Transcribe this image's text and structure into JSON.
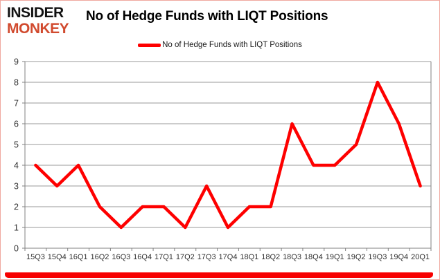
{
  "logo": {
    "line1": "INSIDER",
    "line2": "MONKEY",
    "line1_color": "#111111",
    "line2_color": "#d14a2e"
  },
  "header": {
    "title": "No of Hedge Funds with LIQT Positions"
  },
  "legend": {
    "label": "No of Hedge Funds with LIQT Positions",
    "swatch_color": "#fe0000",
    "position": "top-center"
  },
  "chart_data": {
    "type": "line",
    "title": "No of Hedge Funds with LIQT Positions",
    "categories": [
      "15Q3",
      "15Q4",
      "16Q1",
      "16Q2",
      "16Q3",
      "16Q4",
      "17Q1",
      "17Q2",
      "17Q3",
      "17Q4",
      "18Q1",
      "18Q2",
      "18Q3",
      "18Q4",
      "19Q1",
      "19Q2",
      "19Q3",
      "19Q4",
      "20Q1"
    ],
    "series": [
      {
        "name": "No of Hedge Funds with LIQT Positions",
        "color": "#fe0000",
        "stroke_width": 4.5,
        "values": [
          4,
          3,
          4,
          2,
          1,
          2,
          2,
          1,
          3,
          1,
          2,
          2,
          6,
          4,
          4,
          5,
          8,
          6,
          3
        ]
      }
    ],
    "xlabel": "",
    "ylabel": "",
    "ylim": [
      0,
      9
    ],
    "y_ticks": [
      0,
      1,
      2,
      3,
      4,
      5,
      6,
      7,
      8,
      9
    ],
    "grid": true,
    "gridline_color": "#9a9a9a",
    "axis_color": "#808080",
    "tick_label_color": "#303030",
    "legend_position": "top"
  },
  "decorations": {
    "bottom_bar_color": "#f70000",
    "card_border_color": "#f0a89f"
  }
}
